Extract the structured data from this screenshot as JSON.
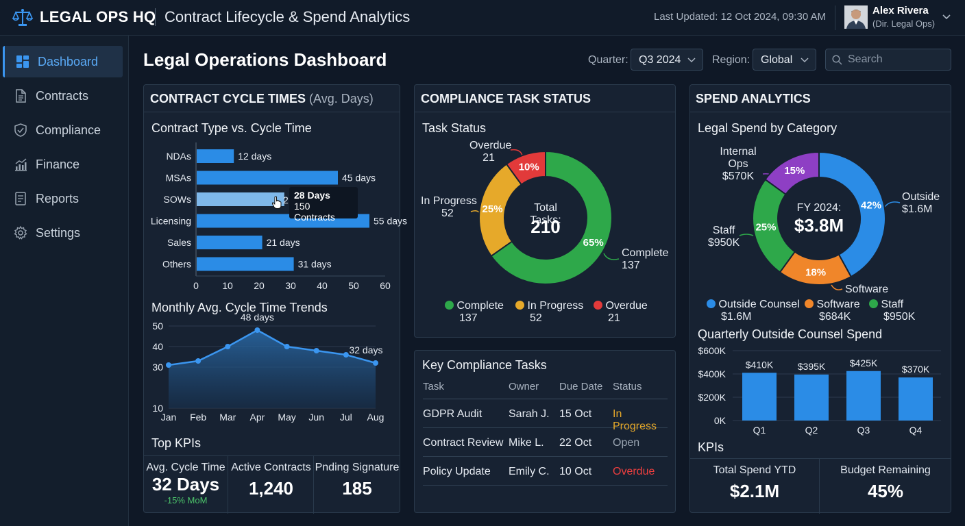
{
  "app": {
    "brand": "LEGAL OPS HQ",
    "subtitle": "Contract Lifecycle & Spend Analytics",
    "last_updated": "Last Updated: 12 Oct 2024, 09:30 AM"
  },
  "user": {
    "name": "Alex Rivera",
    "role": "(Dir. Legal Ops)"
  },
  "sidebar": {
    "items": [
      {
        "label": "Dashboard",
        "icon": "dashboard-icon",
        "active": true
      },
      {
        "label": "Contracts",
        "icon": "document-icon"
      },
      {
        "label": "Compliance",
        "icon": "shield-icon"
      },
      {
        "label": "Finance",
        "icon": "chart-icon"
      },
      {
        "label": "Reports",
        "icon": "report-icon"
      },
      {
        "label": "Settings",
        "icon": "gear-icon"
      }
    ]
  },
  "header": {
    "title": "Legal Operations Dashboard",
    "quarter_label": "Quarter:",
    "quarter_value": "Q3 2024",
    "region_label": "Region:",
    "region_value": "Global",
    "search_placeholder": "Search"
  },
  "cycle_panel": {
    "title": "CONTRACT CYCLE TIMES",
    "title_suffix": "(Avg. Days)",
    "bar_title": "Contract Type vs. Cycle Time",
    "trend_title": "Monthly Avg. Cycle Time Trends",
    "tooltip": {
      "line1": "28 Days",
      "line2": "150 Contracts",
      "peek": "2"
    },
    "kpi_title": "Top KPIs",
    "kpis": [
      {
        "label": "Avg. Cycle Time",
        "value": "32 Days",
        "sub": "-15% MoM"
      },
      {
        "label": "Active Contracts",
        "value": "1,240"
      },
      {
        "label": "Pnding Signature",
        "value": "185"
      }
    ]
  },
  "compliance_panel": {
    "title": "COMPLIANCE TASK STATUS",
    "donut_title": "Task Status",
    "center_label": "Total Tasks:",
    "center_value": "210",
    "callouts": {
      "overdue": {
        "label": "Overdue",
        "value": "21"
      },
      "in_progress": {
        "label": "In Progress",
        "value": "52"
      },
      "complete": {
        "label": "Complete",
        "value": "137"
      }
    },
    "legend": [
      {
        "label": "Complete",
        "value": "137",
        "color": "#2ea84a"
      },
      {
        "label": "In Progress",
        "value": "52",
        "color": "#e6a92a"
      },
      {
        "label": "Overdue",
        "value": "21",
        "color": "#e23a3a"
      }
    ]
  },
  "tasks_panel": {
    "title": "Key Compliance Tasks",
    "columns": [
      "Task",
      "Owner",
      "Due Date",
      "Status"
    ],
    "rows": [
      {
        "task": "GDPR Audit",
        "owner": "Sarah J.",
        "due": "15 Oct",
        "status": "In Progress",
        "status_color": "#e6a92a"
      },
      {
        "task": "Contract Review",
        "owner": "Mike L.",
        "due": "22 Oct",
        "status": "Open",
        "status_color": "#9aa5b2"
      },
      {
        "task": "Policy Update",
        "owner": "Emily C.",
        "due": "10 Oct",
        "status": "Overdue",
        "status_color": "#ee3f3f"
      }
    ]
  },
  "spend_panel": {
    "title": "SPEND ANALYTICS",
    "donut_title": "Legal Spend by Category",
    "center_label": "FY 2024:",
    "center_value": "$3.8M",
    "callouts": {
      "internal": {
        "label": "Internal Ops",
        "value": "$570K"
      },
      "outside": {
        "label": "Outside",
        "value": "$1.6M"
      },
      "staff": {
        "label": "Staff",
        "value": "$950K"
      },
      "software": {
        "label": "Software"
      }
    },
    "legend": [
      {
        "label": "Outside Counsel",
        "value": "$1.6M",
        "color": "#2b8ce6"
      },
      {
        "label": "Software",
        "value": "$684K",
        "color": "#f0862a"
      },
      {
        "label": "Staff",
        "value": "$950K",
        "color": "#2ea84a"
      }
    ],
    "bar_title": "Quarterly Outside Counsel Spend",
    "kpi_title": "KPIs",
    "kpis": [
      {
        "label": "Total Spend YTD",
        "value": "$2.1M"
      },
      {
        "label": "Budget Remaining",
        "value": "45%"
      }
    ]
  },
  "chart_data": [
    {
      "type": "bar",
      "orientation": "horizontal",
      "title": "Contract Type vs. Cycle Time",
      "categories": [
        "NDAs",
        "MSAs",
        "SOWs",
        "Licensing",
        "Sales",
        "Others"
      ],
      "values": [
        12,
        45,
        28,
        55,
        21,
        31
      ],
      "data_labels": [
        "12 days",
        "45 days",
        "",
        "55 days",
        "21 days",
        "31 days"
      ],
      "xlim": [
        0,
        60
      ],
      "xticks": [
        "0",
        "10",
        "20",
        "30",
        "40",
        "50",
        "60"
      ],
      "highlight": "SOWs",
      "color": "#2b8ce6",
      "highlight_color": "#7fb8ea"
    },
    {
      "type": "area",
      "title": "Monthly Avg. Cycle Time Trends",
      "categories": [
        "Jan",
        "Feb",
        "Mar",
        "Apr",
        "May",
        "Jun",
        "Jul",
        "Aug"
      ],
      "values": [
        31,
        33,
        40,
        48,
        40,
        38,
        36,
        32
      ],
      "annotations": [
        {
          "index": 3,
          "text": "48 days"
        },
        {
          "index": 7,
          "text": "32 days"
        }
      ],
      "ylim": [
        10,
        50
      ],
      "yticks": [
        "10",
        "30",
        "40",
        "50"
      ],
      "grid": true,
      "color": "#2b8ce6"
    },
    {
      "type": "pie",
      "donut": true,
      "title": "Task Status",
      "labels": [
        "Complete",
        "In Progress",
        "Overdue"
      ],
      "values": [
        137,
        52,
        21
      ],
      "percent_labels": [
        "65%",
        "25%",
        "10%"
      ],
      "colors": [
        "#2ea84a",
        "#e6a92a",
        "#e23a3a"
      ]
    },
    {
      "type": "pie",
      "donut": true,
      "title": "Legal Spend by Category",
      "labels": [
        "Outside Counsel",
        "Software",
        "Staff",
        "Internal Ops"
      ],
      "values": [
        42,
        18,
        25,
        15
      ],
      "percent_labels": [
        "42%",
        "18%",
        "25%",
        "15%"
      ],
      "colors": [
        "#2b8ce6",
        "#f0862a",
        "#2ea84a",
        "#8e3fc4"
      ]
    },
    {
      "type": "bar",
      "title": "Quarterly Outside Counsel Spend",
      "categories": [
        "Q1",
        "Q2",
        "Q3",
        "Q4"
      ],
      "values": [
        410,
        395,
        425,
        370
      ],
      "data_labels": [
        "$410K",
        "$395K",
        "$425K",
        "$370K"
      ],
      "ylim": [
        0,
        600
      ],
      "yticks": [
        "0K",
        "$200K",
        "$400K",
        "$600K"
      ],
      "color": "#2b8ce6"
    }
  ]
}
